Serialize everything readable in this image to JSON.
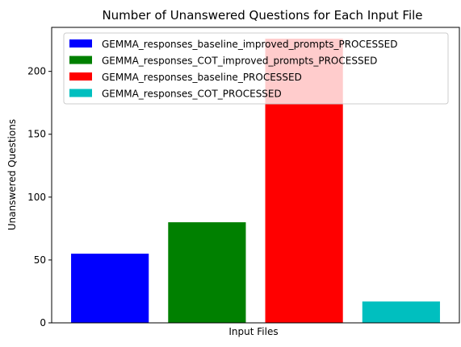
{
  "chart_data": {
    "type": "bar",
    "title": "Number of Unanswered Questions for Each Input File",
    "xlabel": "Input Files",
    "ylabel": "Unanswered Questions",
    "ylim": [
      0,
      235
    ],
    "yticks": [
      0,
      50,
      100,
      150,
      200
    ],
    "grid": false,
    "legend_position": "top-right",
    "series": [
      {
        "name": "GEMMA_responses_baseline_improved_prompts_PROCESSED",
        "value": 55,
        "color": "#0000ff"
      },
      {
        "name": "GEMMA_responses_COT_improved_prompts_PROCESSED",
        "value": 80,
        "color": "#008000"
      },
      {
        "name": "GEMMA_responses_baseline_PROCESSED",
        "value": 226,
        "color": "#ff0000"
      },
      {
        "name": "GEMMA_responses_COT_PROCESSED",
        "value": 17,
        "color": "#00bfbf"
      }
    ]
  }
}
